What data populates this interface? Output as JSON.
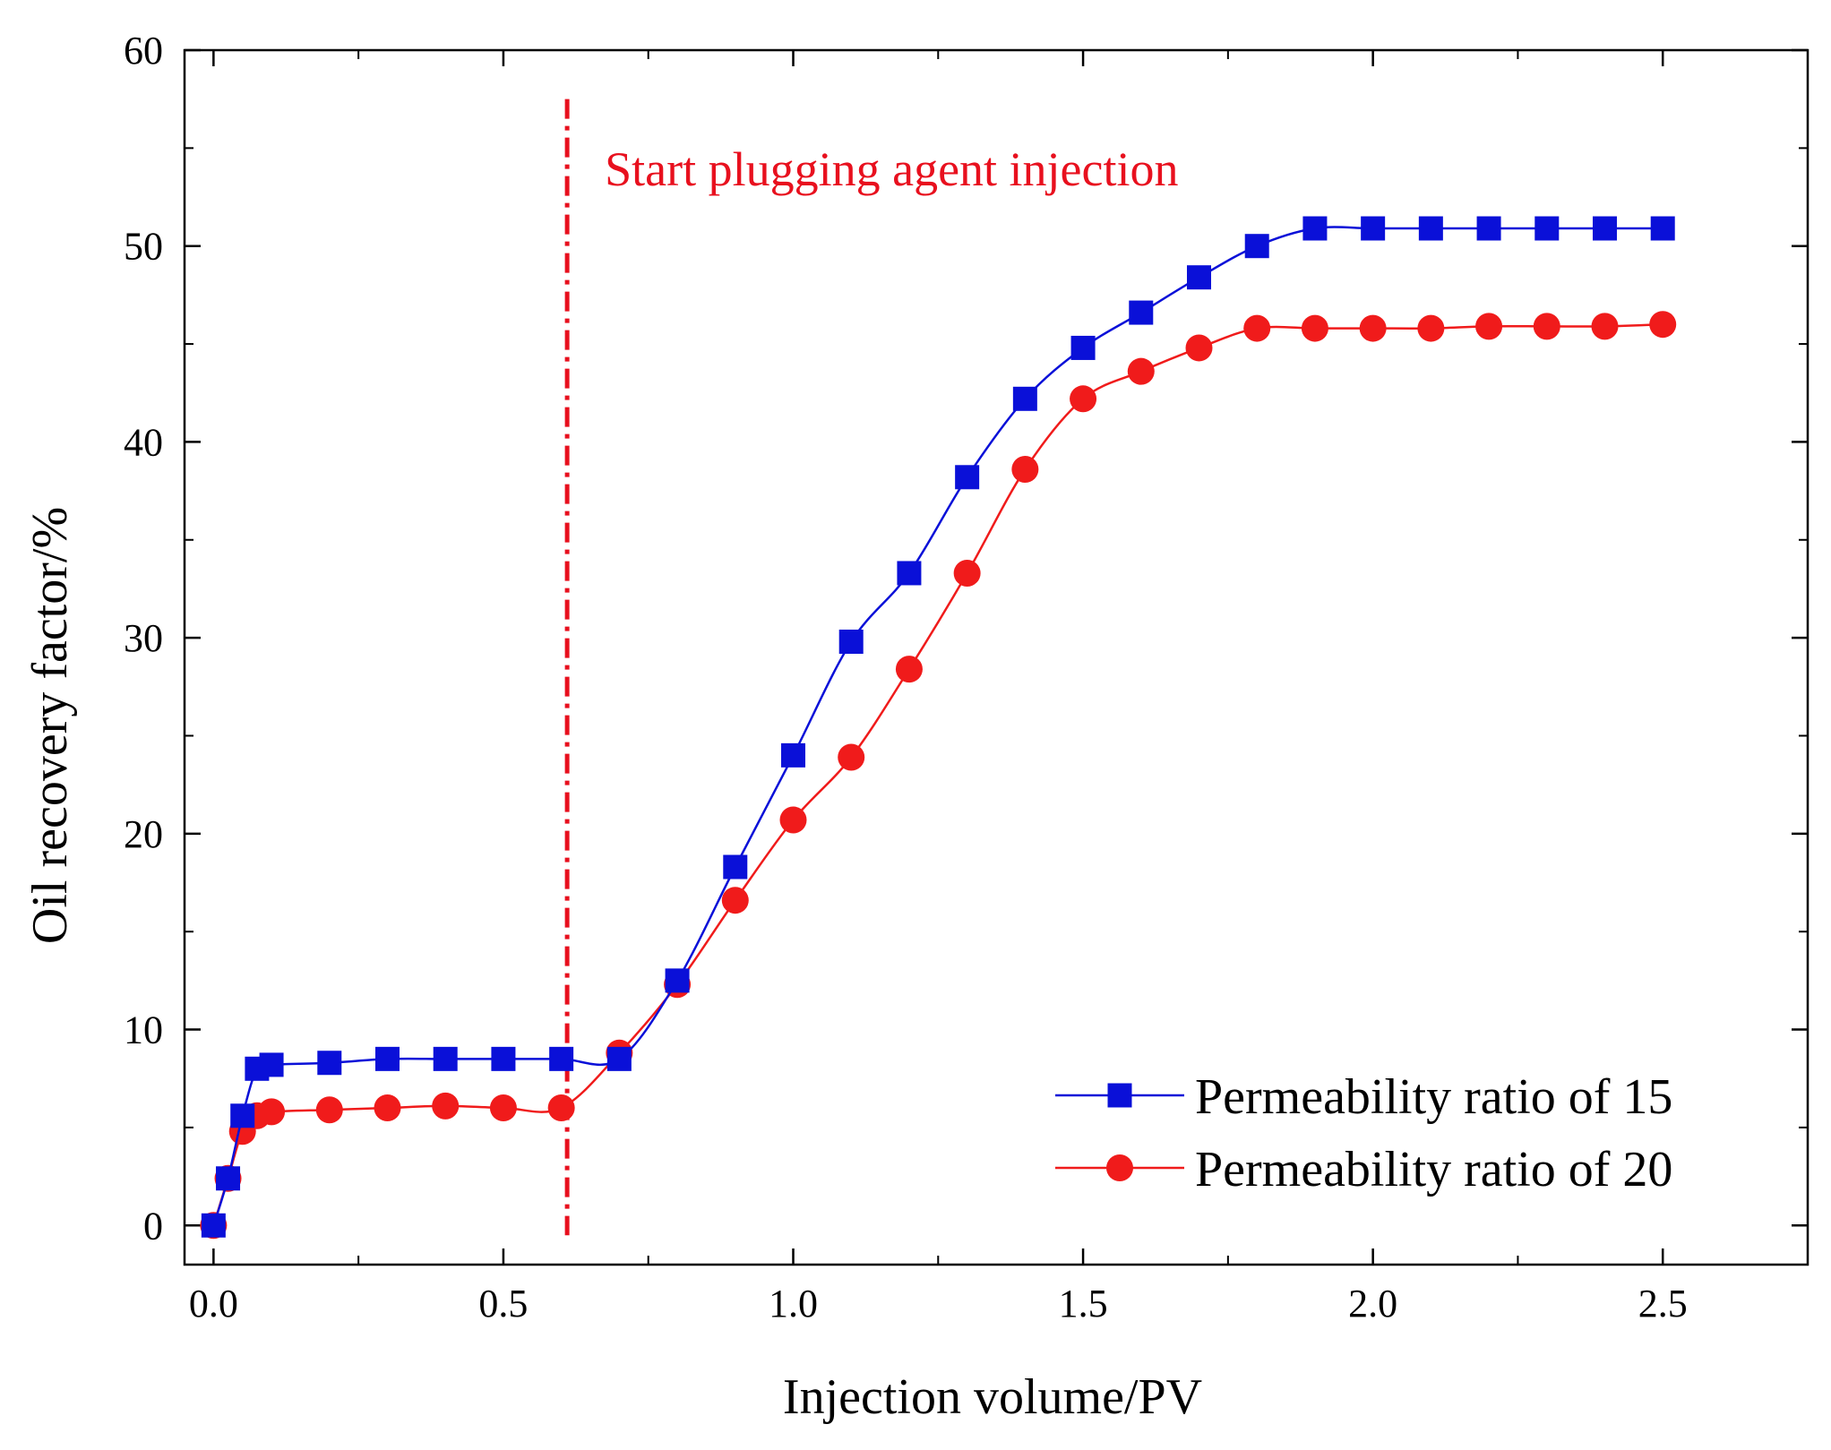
{
  "chart_data": {
    "type": "line",
    "title": "",
    "xlabel": "Injection volume/PV",
    "ylabel": "Oil recovery factor/%",
    "xlim": [
      -0.05,
      2.75
    ],
    "ylim": [
      -2,
      60
    ],
    "xticks": [
      0.0,
      0.5,
      1.0,
      1.5,
      2.0,
      2.5
    ],
    "xtick_labels": [
      "0.0",
      "0.5",
      "1.0",
      "1.5",
      "2.0",
      "2.5"
    ],
    "yticks": [
      0,
      10,
      20,
      30,
      40,
      50,
      60
    ],
    "ytick_labels": [
      "0",
      "10",
      "20",
      "30",
      "40",
      "50",
      "60"
    ],
    "grid": false,
    "legend_position": "bottom-right",
    "series": [
      {
        "name": "Permeability ratio of 15",
        "color": "#0a10d8",
        "marker": "square",
        "x": [
          0.0,
          0.025,
          0.05,
          0.075,
          0.1,
          0.2,
          0.3,
          0.4,
          0.5,
          0.6,
          0.7,
          0.8,
          0.9,
          1.0,
          1.1,
          1.2,
          1.3,
          1.4,
          1.5,
          1.6,
          1.7,
          1.8,
          1.9,
          2.0,
          2.1,
          2.2,
          2.3,
          2.4,
          2.5
        ],
        "y": [
          0.0,
          2.4,
          5.6,
          8.0,
          8.2,
          8.3,
          8.5,
          8.5,
          8.5,
          8.5,
          8.5,
          12.5,
          18.3,
          24.0,
          29.8,
          33.3,
          38.2,
          42.2,
          44.8,
          46.6,
          48.4,
          50.0,
          50.9,
          50.9,
          50.9,
          50.9,
          50.9,
          50.9,
          50.9
        ]
      },
      {
        "name": "Permeability ratio of 20",
        "color": "#f01b1b",
        "marker": "circle",
        "x": [
          0.0,
          0.025,
          0.05,
          0.075,
          0.1,
          0.2,
          0.3,
          0.4,
          0.5,
          0.6,
          0.7,
          0.8,
          0.9,
          1.0,
          1.1,
          1.2,
          1.3,
          1.4,
          1.5,
          1.6,
          1.7,
          1.8,
          1.9,
          2.0,
          2.1,
          2.2,
          2.3,
          2.4,
          2.5
        ],
        "y": [
          0.0,
          2.4,
          4.8,
          5.6,
          5.8,
          5.9,
          6.0,
          6.1,
          6.0,
          6.0,
          8.8,
          12.3,
          16.6,
          20.7,
          23.9,
          28.4,
          33.3,
          38.6,
          42.2,
          43.6,
          44.8,
          45.8,
          45.8,
          45.8,
          45.8,
          45.9,
          45.9,
          45.9,
          46.0
        ]
      }
    ],
    "annotations": [
      {
        "type": "vline",
        "x": 0.61,
        "style": "dash-dot",
        "color": "#e8101e",
        "text": "Start plugging agent injection"
      }
    ]
  }
}
